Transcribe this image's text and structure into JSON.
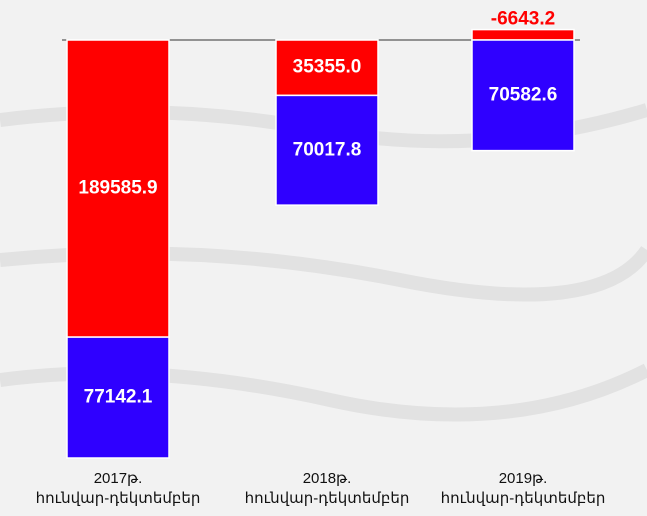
{
  "chart_data": {
    "type": "bar",
    "stacked": true,
    "categories": [
      "2017թ.",
      "2018թ.",
      "2019թ."
    ],
    "category_sublabels": [
      "հունվար-դեկտեմբեր",
      "հունվար-դեկտեմբեր",
      "հունվար-դեկտեմբեր"
    ],
    "series": [
      {
        "color": "#ff0000",
        "values": [
          189585.9,
          35355.0,
          -6643.2
        ],
        "value_labels": [
          "189585.9",
          "35355.0",
          "-6643.2"
        ]
      },
      {
        "color": "#2f00ff",
        "values": [
          77142.1,
          70017.8,
          70582.6
        ]
      }
    ]
  }
}
